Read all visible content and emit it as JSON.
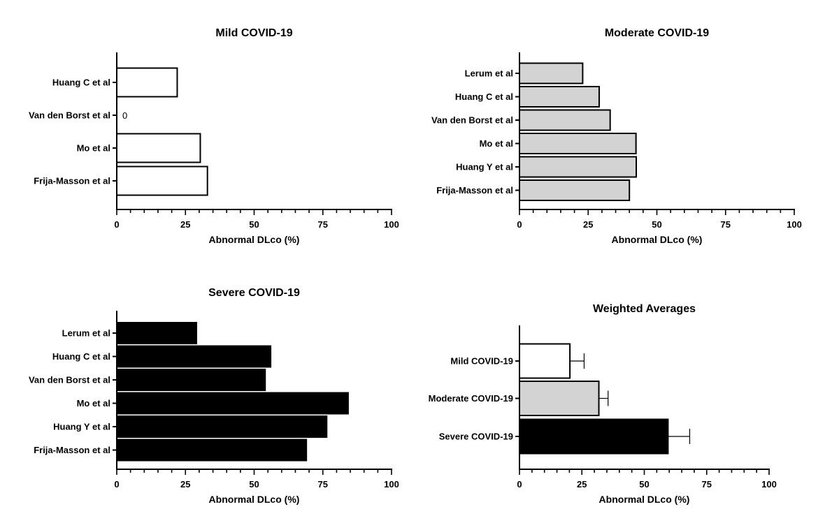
{
  "chart_data": [
    {
      "type": "bar",
      "orientation": "horizontal",
      "title": "Mild COVID-19",
      "xlabel": "Abnormal DLco (%)",
      "xlim": [
        0,
        100
      ],
      "xticks": [
        "0",
        "25",
        "50",
        "75",
        "100"
      ],
      "categories": [
        "Huang C et al",
        "Van den Borst et al",
        "Mo et al",
        "Frija-Masson et al"
      ],
      "values": [
        22,
        0,
        30.4,
        33
      ],
      "annotations": [
        "",
        "0",
        "",
        ""
      ],
      "bar_color": "#ffffff"
    },
    {
      "type": "bar",
      "orientation": "horizontal",
      "title": "Moderate COVID-19",
      "xlabel": "Abnormal DLco (%)",
      "xlim": [
        0,
        100
      ],
      "xticks": [
        "0",
        "25",
        "50",
        "75",
        "100"
      ],
      "categories": [
        "Lerum et al",
        "Huang C et al",
        "Van den Borst et al",
        "Mo et al",
        "Huang Y et al",
        "Frija-Masson et al"
      ],
      "values": [
        23,
        29,
        33,
        42.4,
        42.5,
        40
      ],
      "bar_color": "#d3d3d3"
    },
    {
      "type": "bar",
      "orientation": "horizontal",
      "title": "Severe COVID-19",
      "xlabel": "Abnormal DLco (%)",
      "xlim": [
        0,
        100
      ],
      "xticks": [
        "0",
        "25",
        "50",
        "75",
        "100"
      ],
      "categories": [
        "Lerum et al",
        "Huang C et al",
        "Van den Borst et al",
        "Mo et al",
        "Huang Y et al",
        "Frija-Masson et al"
      ],
      "values": [
        29,
        56,
        54,
        84.2,
        76.4,
        69
      ],
      "bar_color": "#000000"
    },
    {
      "type": "bar",
      "orientation": "horizontal",
      "title": "Weighted Averages",
      "xlabel": "Abnormal DLco (%)",
      "xlim": [
        0,
        100
      ],
      "xticks": [
        "0",
        "25",
        "50",
        "75",
        "100"
      ],
      "categories": [
        "Mild COVID-19",
        "Moderate COVID-19",
        "Severe COVID-19"
      ],
      "values": [
        20.2,
        31.8,
        59.5
      ],
      "error_upper": [
        5.7,
        3.7,
        8.7
      ],
      "bar_colors": [
        "#ffffff",
        "#d3d3d3",
        "#000000"
      ]
    }
  ]
}
